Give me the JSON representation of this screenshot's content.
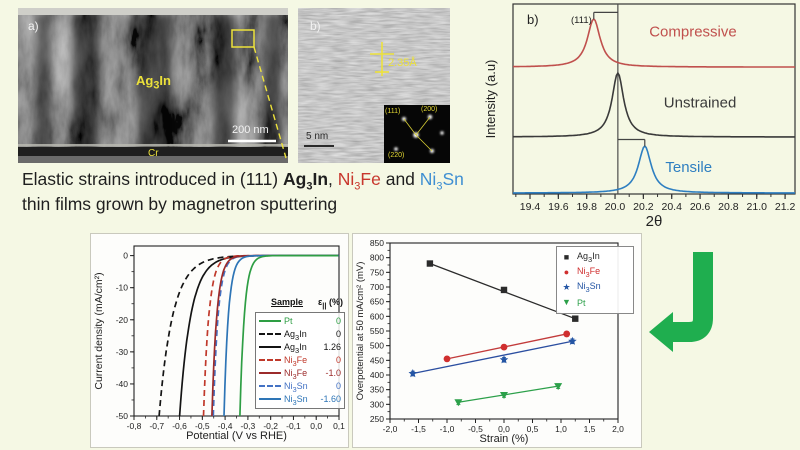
{
  "background": "#f5f8e4",
  "tem": {
    "panel_a": {
      "label": "a)",
      "material": "Ag3In",
      "scalebar": "200 nm",
      "substrate": "Cr"
    },
    "panel_b": {
      "label": "b)",
      "d_spacing": "2.35Å",
      "scalebar": "5 nm",
      "diffraction_labels": [
        "(111)",
        "(200)",
        "(220)"
      ]
    }
  },
  "caption": {
    "line1": [
      {
        "text": "Elastic strains introduced in (111) ",
        "color": "#1f1f1f"
      },
      {
        "text": "Ag3In",
        "color": "#1f1f1f",
        "bold": true
      },
      {
        "text": ", ",
        "color": "#1f1f1f"
      },
      {
        "text": "Ni3Fe",
        "color": "#c8372d"
      },
      {
        "text": " and ",
        "color": "#1f1f1f"
      },
      {
        "text": "Ni3Sn",
        "color": "#3f8fd2"
      }
    ],
    "line2": [
      {
        "text": "thin films grown by magnetron sputtering",
        "color": "#1f1f1f"
      }
    ]
  },
  "chart_data": [
    {
      "id": "xrd",
      "type": "line",
      "panel_label": "b)",
      "annotation": "(111)",
      "xlabel": "2θ",
      "ylabel": "Intensity (a.u)",
      "xlim": [
        19.28,
        21.27
      ],
      "xticks": [
        19.4,
        19.6,
        19.8,
        20.0,
        20.2,
        20.4,
        20.6,
        20.8,
        21.0,
        21.2
      ],
      "xtick_labels": [
        "19.4",
        "19.6",
        "19.8",
        "20.0",
        "20.2",
        "20.4",
        "20.6",
        "20.8",
        "21.0",
        "21.2"
      ],
      "reference_line_x": 20.02,
      "series": [
        {
          "name": "Compressive",
          "color": "#c0504d",
          "peak_center": 19.85,
          "peak_width": 0.055,
          "baseline_frac": 0.332,
          "height_frac": 0.253,
          "bracket": true,
          "label_x": 20.55,
          "label_y_frac": 0.17
        },
        {
          "name": "Unstrained",
          "color": "#3a3a3a",
          "peak_center": 20.02,
          "peak_width": 0.05,
          "baseline_frac": 0.7,
          "height_frac": 0.337,
          "bracket": false,
          "label_x": 20.6,
          "label_y_frac": 0.545
        },
        {
          "name": "Tensile",
          "color": "#2e7fc1",
          "peak_center": 20.21,
          "peak_width": 0.055,
          "baseline_frac": 0.995,
          "height_frac": 0.247,
          "bracket": true,
          "label_x": 20.52,
          "label_y_frac": 0.885
        }
      ]
    },
    {
      "id": "polarization",
      "type": "line",
      "xlabel": "Potential (V vs RHE)",
      "ylabel": "Current density (mA/cm²)",
      "xlim": [
        -0.8,
        0.1
      ],
      "ylim": [
        -50,
        3
      ],
      "xticks": [
        -0.8,
        -0.7,
        -0.6,
        -0.5,
        -0.4,
        -0.3,
        -0.2,
        -0.1,
        0.0,
        0.1
      ],
      "xtick_labels": [
        "-0,8",
        "-0,7",
        "-0,6",
        "-0,5",
        "-0,4",
        "-0,3",
        "-0,2",
        "-0,1",
        "0,0",
        "0,1"
      ],
      "yticks": [
        0,
        -10,
        -20,
        -30,
        -40,
        -50
      ],
      "ytick_labels": [
        "0",
        "-10",
        "-20",
        "-30",
        "-40",
        "-50"
      ],
      "legend": {
        "header_sample": "Sample",
        "header_strain_pre": "ε",
        "header_strain_sub": "||",
        "header_strain_post": " (%)"
      },
      "series": [
        {
          "name": "Pt",
          "strain": "0",
          "color": "#2e9e44",
          "dash": false,
          "e50": -0.335,
          "tafel": 0.045
        },
        {
          "name": "Ag3In",
          "strain": "0",
          "color": "#141414",
          "dash": true,
          "e50": -0.69,
          "tafel": 0.14
        },
        {
          "name": "Ag3In",
          "strain": "1.26",
          "color": "#141414",
          "dash": false,
          "e50": -0.6,
          "tafel": 0.115
        },
        {
          "name": "Ni3Fe",
          "strain": "0",
          "color": "#c0392b",
          "dash": true,
          "e50": -0.495,
          "tafel": 0.055
        },
        {
          "name": "Ni3Fe",
          "strain": "-1.0",
          "color": "#9c2b2b",
          "dash": false,
          "e50": -0.458,
          "tafel": 0.05
        },
        {
          "name": "Ni3Sn",
          "strain": "0",
          "color": "#4472c4",
          "dash": true,
          "e50": -0.452,
          "tafel": 0.05
        },
        {
          "name": "Ni3Sn",
          "strain": "-1.60",
          "color": "#2e75b6",
          "dash": false,
          "e50": -0.405,
          "tafel": 0.045
        }
      ],
      "draw_order": [
        1,
        2,
        3,
        5,
        4,
        6,
        0
      ]
    },
    {
      "id": "overpotential",
      "type": "scatter",
      "xlabel": "Strain (%)",
      "ylabel": "Overpotential at 50 mA/cm² (mV)",
      "xlim": [
        -2.0,
        2.0
      ],
      "ylim": [
        250,
        850
      ],
      "xticks": [
        -2.0,
        -1.5,
        -1.0,
        -0.5,
        0.0,
        0.5,
        1.0,
        1.5,
        2.0
      ],
      "xtick_labels": [
        "-2,0",
        "-1,5",
        "-1,0",
        "-0,5",
        "0,0",
        "0,5",
        "1,0",
        "1,5",
        "2,0"
      ],
      "yticks": [
        250,
        300,
        350,
        400,
        450,
        500,
        550,
        600,
        650,
        700,
        750,
        800,
        850
      ],
      "series": [
        {
          "name": "Ag3In",
          "marker": "square",
          "marker_char": "■",
          "color": "#2b2b2b",
          "line_color": "#2b2b2b",
          "points": [
            [
              -1.3,
              780
            ],
            [
              0,
              690
            ],
            [
              1.25,
              592
            ]
          ],
          "error_mv": 8
        },
        {
          "name": "Ni3Fe",
          "marker": "circle",
          "marker_char": "●",
          "color": "#d02f2f",
          "line_color": "#c23b3b",
          "points": [
            [
              -1.0,
              455
            ],
            [
              0,
              495
            ],
            [
              1.1,
              540
            ]
          ],
          "error_mv": 8
        },
        {
          "name": "Ni3Sn",
          "marker": "star",
          "marker_char": "★",
          "color": "#2455a4",
          "line_color": "#2b4ea0",
          "points": [
            [
              -1.6,
              405
            ],
            [
              0,
              452
            ],
            [
              1.2,
              515
            ]
          ],
          "error_mv": 8
        },
        {
          "name": "Pt",
          "marker": "triangle-down",
          "marker_char": "▼",
          "color": "#2ca04a",
          "line_color": "#2ca04a",
          "points": [
            [
              -0.8,
              307
            ],
            [
              0,
              332
            ],
            [
              0.95,
              362
            ]
          ],
          "error_mv": 8
        }
      ]
    }
  ],
  "arrow": {
    "color": "#1fae4f"
  }
}
